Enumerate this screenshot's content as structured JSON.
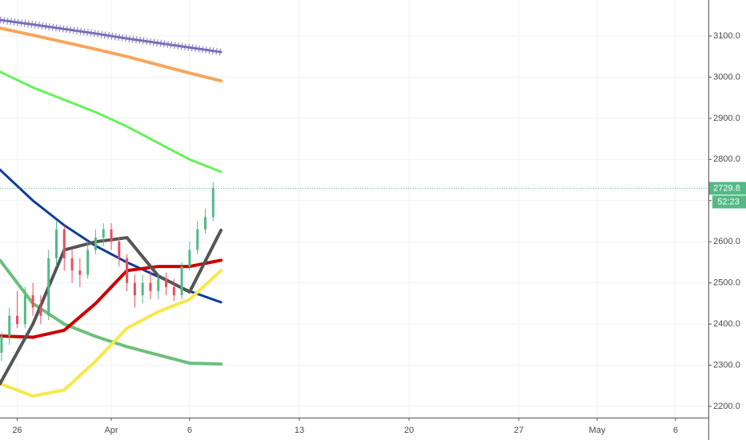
{
  "chart_data": {
    "type": "candlestick",
    "xlim": [
      -1.1,
      44.1
    ],
    "xticks": [
      {
        "value": 0,
        "label": "26"
      },
      {
        "value": 6,
        "label": "Apr"
      },
      {
        "value": 11,
        "label": "6"
      },
      {
        "value": 18,
        "label": "13"
      },
      {
        "value": 25,
        "label": "20"
      },
      {
        "value": 32,
        "label": "27"
      },
      {
        "value": 37,
        "label": "May"
      },
      {
        "value": 42,
        "label": "6"
      }
    ],
    "ylim": [
      2172.7,
      3187.5
    ],
    "yticks": [
      {
        "value": 2200,
        "label": "2200.0"
      },
      {
        "value": 2300,
        "label": "2300.0"
      },
      {
        "value": 2400,
        "label": "2400.0"
      },
      {
        "value": 2500,
        "label": "2500.0"
      },
      {
        "value": 2600,
        "label": "2600.0"
      },
      {
        "value": 2700,
        "label": "2700.0"
      },
      {
        "value": 2800,
        "label": "2800.0"
      },
      {
        "value": 2900,
        "label": "2900.0"
      },
      {
        "value": 3000,
        "label": "3000.0"
      },
      {
        "value": 3100,
        "label": "3100.0"
      }
    ],
    "grid": true,
    "up_color": "#53b987",
    "down_color": "#eb4d5c",
    "candles": {
      "x": [
        -1.0,
        -0.5,
        0,
        0.5,
        1.0,
        1.5,
        2.0,
        2.5,
        3.0,
        3.5,
        4.0,
        4.5,
        5.0,
        5.5,
        6.0,
        6.5,
        7.0,
        7.5,
        8.0,
        8.5,
        9.0,
        9.5,
        10.0,
        10.5,
        11.0,
        11.5,
        12.0,
        12.5
      ],
      "open": [
        2330,
        2370,
        2420,
        2400,
        2470,
        2440,
        2420,
        2560,
        2630,
        2560,
        2530,
        2520,
        2580,
        2610,
        2630,
        2600,
        2560,
        2500,
        2470,
        2500,
        2480,
        2510,
        2490,
        2470,
        2540,
        2580,
        2630,
        2660
      ],
      "high": [
        2380,
        2440,
        2480,
        2490,
        2500,
        2470,
        2580,
        2650,
        2640,
        2580,
        2560,
        2600,
        2630,
        2645,
        2645,
        2610,
        2570,
        2520,
        2520,
        2530,
        2520,
        2525,
        2510,
        2550,
        2600,
        2650,
        2680,
        2745
      ],
      "low": [
        2310,
        2350,
        2390,
        2390,
        2420,
        2400,
        2410,
        2540,
        2530,
        2500,
        2490,
        2510,
        2570,
        2590,
        2580,
        2540,
        2480,
        2440,
        2450,
        2460,
        2460,
        2470,
        2455,
        2460,
        2530,
        2570,
        2620,
        2650
      ],
      "close": [
        2370,
        2420,
        2400,
        2470,
        2440,
        2420,
        2560,
        2630,
        2560,
        2530,
        2520,
        2580,
        2610,
        2630,
        2600,
        2560,
        2500,
        2470,
        2500,
        2480,
        2510,
        2490,
        2470,
        2540,
        2580,
        2630,
        2660,
        2730
      ]
    },
    "x": [
      -1.1,
      1,
      3,
      5,
      7,
      9,
      11,
      13
    ],
    "series": [
      {
        "color": "#7b6fb8",
        "width": 3,
        "marker": "cross",
        "values": [
          3139,
          3128,
          3117,
          3106,
          3094,
          3083,
          3072,
          3061
        ]
      },
      {
        "color": "#f8a55c",
        "width": 4,
        "values": [
          3119,
          3102,
          3085,
          3068,
          3050,
          3030,
          3010,
          2991
        ]
      },
      {
        "color": "#66f25a",
        "width": 3,
        "values": [
          3013,
          2975,
          2945,
          2915,
          2880,
          2840,
          2800,
          2770
        ]
      },
      {
        "color": "#0e3d9a",
        "width": 3,
        "values": [
          2775,
          2700,
          2640,
          2590,
          2550,
          2515,
          2480,
          2453
        ]
      },
      {
        "color": "#6dbf7b",
        "width": 4,
        "values": [
          2555,
          2450,
          2400,
          2370,
          2345,
          2325,
          2305,
          2303
        ]
      },
      {
        "color": "#f6e94a",
        "width": 4,
        "values": [
          2255,
          2225,
          2240,
          2310,
          2390,
          2430,
          2460,
          2530
        ]
      },
      {
        "color": "#cc0000",
        "width": 4,
        "values": [
          2371,
          2368,
          2385,
          2450,
          2530,
          2540,
          2540,
          2555
        ]
      },
      {
        "color": "#555555",
        "width": 4,
        "values": [
          2255,
          2400,
          2580,
          2600,
          2610,
          2517,
          2478,
          2628
        ]
      }
    ],
    "last_price": 2729.8,
    "countdown": "52:23"
  }
}
